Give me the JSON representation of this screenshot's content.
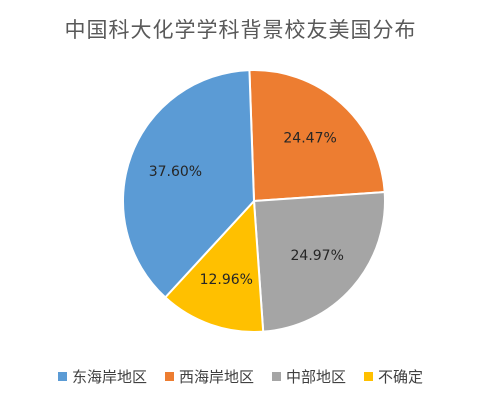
{
  "chart_data": {
    "type": "pie",
    "title": "中国科大化学学科背景校友美国分布",
    "categories": [
      "东海岸地区",
      "西海岸地区",
      "中部地区",
      "不确定"
    ],
    "values": [
      37.6,
      24.47,
      24.97,
      12.96
    ],
    "labels": [
      "37.60%",
      "24.47%",
      "24.97%",
      "12.96%"
    ],
    "colors": [
      "#5B9BD5",
      "#ED7D31",
      "#A5A5A5",
      "#FFC000"
    ],
    "legend_position": "bottom",
    "slice_order_clockwise_from_top": [
      "西海岸地区",
      "中部地区",
      "不确定",
      "东海岸地区"
    ]
  }
}
